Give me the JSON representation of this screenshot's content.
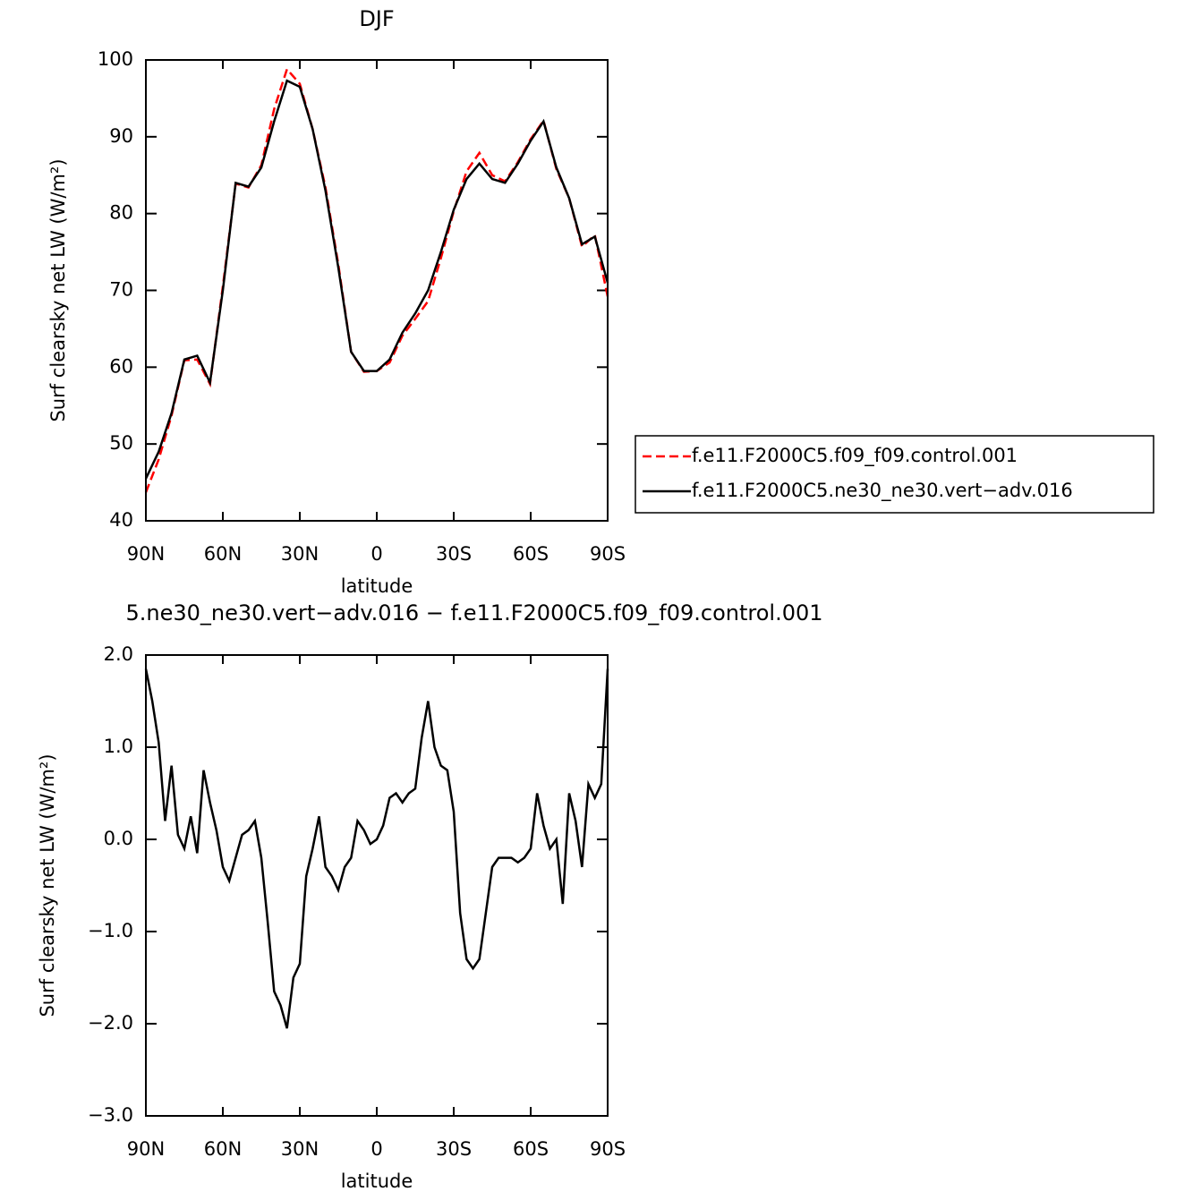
{
  "chart_data": [
    {
      "type": "line",
      "title": "DJF",
      "x_label": "latitude",
      "y_label": "Surf clearsky net LW (W/m²)",
      "xlim": [
        90,
        -90
      ],
      "xticks": [
        {
          "value": 90,
          "label": "90N"
        },
        {
          "value": 60,
          "label": "60N"
        },
        {
          "value": 30,
          "label": "30N"
        },
        0,
        {
          "value": -30,
          "label": "30S"
        },
        {
          "value": -60,
          "label": "60S"
        },
        {
          "value": -90,
          "label": "90S"
        }
      ],
      "ylim": [
        40,
        100
      ],
      "yticks": [
        40,
        50,
        60,
        70,
        80,
        90,
        100
      ],
      "x": [
        90,
        85,
        80,
        75,
        70,
        65,
        60,
        55,
        50,
        45,
        40,
        35,
        30,
        25,
        20,
        15,
        10,
        5,
        0,
        -5,
        -10,
        -15,
        -20,
        -25,
        -30,
        -35,
        -40,
        -45,
        -50,
        -55,
        -60,
        -65,
        -70,
        -75,
        -80,
        -85,
        -90
      ],
      "series": [
        {
          "name": "f.e11.F2000C5.f09_f09.control.001",
          "color": "#ff0000",
          "dash": true,
          "values": [
            43.7,
            48,
            53.7,
            60.9,
            61,
            57.8,
            70.5,
            83.9,
            83.4,
            86.3,
            93.6,
            98.8,
            96.9,
            91,
            83.4,
            73.4,
            62,
            59.4,
            59.5,
            60.6,
            64.1,
            66.3,
            68.6,
            74.2,
            80.3,
            85.5,
            87.9,
            85,
            84.2,
            86.7,
            89.7,
            92.1,
            85.8,
            82,
            75.7,
            77.2,
            69.2
          ]
        },
        {
          "name": "f.e11.F2000C5.ne30_ne30.vert−adv.016",
          "color": "#000000",
          "dash": false,
          "values": [
            45.5,
            49,
            54,
            61,
            61.5,
            58,
            70,
            84,
            83.5,
            86,
            92,
            97.3,
            96.5,
            91,
            83,
            73,
            62,
            59.5,
            59.5,
            61,
            64.5,
            67,
            70,
            75,
            80.5,
            84.5,
            86.5,
            84.5,
            84,
            86.5,
            89.5,
            92,
            86,
            82,
            76,
            77,
            71
          ]
        }
      ],
      "legend": "outside-right"
    },
    {
      "type": "line",
      "title": "5.ne30_ne30.vert−adv.016 − f.e11.F2000C5.f09_f09.control.001",
      "x_label": "latitude",
      "y_label": "Surf clearsky net LW (W/m²)",
      "xlim": [
        90,
        -90
      ],
      "xticks": [
        {
          "value": 90,
          "label": "90N"
        },
        {
          "value": 60,
          "label": "60N"
        },
        {
          "value": 30,
          "label": "30N"
        },
        0,
        {
          "value": -30,
          "label": "30S"
        },
        {
          "value": -60,
          "label": "60S"
        },
        {
          "value": -90,
          "label": "90S"
        }
      ],
      "ylim": [
        -3,
        2
      ],
      "yticks": [
        {
          "value": -3,
          "label": "−3.0"
        },
        {
          "value": -2,
          "label": "−2.0"
        },
        {
          "value": -1,
          "label": "−1.0"
        },
        {
          "value": 0,
          "label": "0.0"
        },
        {
          "value": 1,
          "label": "1.0"
        },
        {
          "value": 2,
          "label": "2.0"
        }
      ],
      "x": [
        90,
        87.5,
        85,
        82.5,
        80,
        77.5,
        75,
        72.5,
        70,
        67.5,
        65,
        62.5,
        60,
        57.5,
        55,
        52.5,
        50,
        47.5,
        45,
        42.5,
        40,
        37.5,
        35,
        32.5,
        30,
        27.5,
        25,
        22.5,
        20,
        17.5,
        15,
        12.5,
        10,
        7.5,
        5,
        2.5,
        0,
        -2.5,
        -5,
        -7.5,
        -10,
        -12.5,
        -15,
        -17.5,
        -20,
        -22.5,
        -25,
        -27.5,
        -30,
        -32.5,
        -35,
        -37.5,
        -40,
        -42.5,
        -45,
        -47.5,
        -50,
        -52.5,
        -55,
        -57.5,
        -60,
        -62.5,
        -65,
        -67.5,
        -70,
        -72.5,
        -75,
        -77.5,
        -80,
        -82.5,
        -85,
        -87.5,
        -90
      ],
      "series": [
        {
          "color": "#000000",
          "dash": false,
          "values": [
            1.85,
            1.5,
            1.05,
            0.2,
            0.8,
            0.05,
            -0.1,
            0.25,
            -0.15,
            0.75,
            0.4,
            0.1,
            -0.3,
            -0.45,
            -0.2,
            0.05,
            0.1,
            0.2,
            -0.2,
            -0.9,
            -1.65,
            -1.8,
            -2.05,
            -1.5,
            -1.35,
            -0.4,
            -0.1,
            0.25,
            -0.3,
            -0.4,
            -0.55,
            -0.3,
            -0.2,
            0.2,
            0.1,
            -0.05,
            0.0,
            0.15,
            0.45,
            0.5,
            0.4,
            0.5,
            0.55,
            1.1,
            1.5,
            1.0,
            0.8,
            0.75,
            0.3,
            -0.8,
            -1.3,
            -1.4,
            -1.3,
            -0.8,
            -0.3,
            -0.2,
            -0.2,
            -0.2,
            -0.25,
            -0.2,
            -0.1,
            0.5,
            0.15,
            -0.1,
            0.0,
            -0.7,
            0.5,
            0.2,
            -0.3,
            0.6,
            0.45,
            0.6,
            1.85
          ]
        }
      ]
    }
  ]
}
